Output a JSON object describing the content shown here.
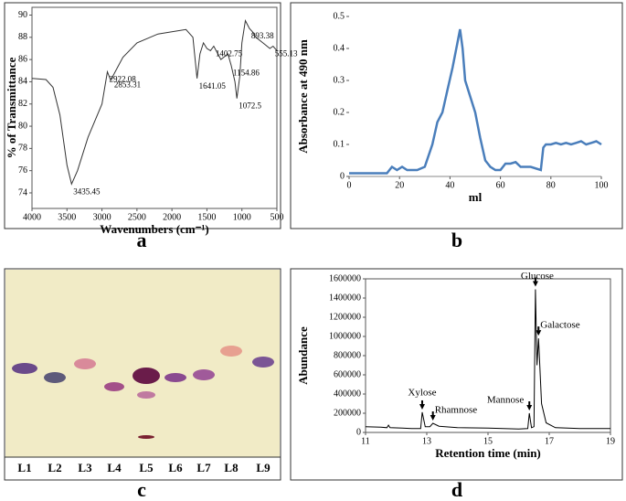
{
  "chart_data": [
    {
      "type": "line",
      "panel": "a",
      "xlabel": "Wavenumbers (cm⁻¹)",
      "ylabel": "% of Transmittance",
      "color": "#333333",
      "xlim": [
        4000,
        500
      ],
      "xticks": [
        4000,
        3500,
        3000,
        2500,
        2000,
        1500,
        1000,
        500
      ],
      "ylim": [
        72.6,
        90.7
      ],
      "yticks": [
        74,
        76,
        78,
        80,
        82,
        84,
        86,
        88,
        90
      ],
      "x": [
        4000,
        3800,
        3700,
        3600,
        3500,
        3435,
        3350,
        3200,
        3000,
        2922,
        2880,
        2853,
        2700,
        2500,
        2200,
        2000,
        1800,
        1700,
        1641,
        1600,
        1550,
        1500,
        1450,
        1402,
        1300,
        1200,
        1154,
        1100,
        1072,
        1030,
        1000,
        950,
        893,
        850,
        800,
        700,
        600,
        555,
        500
      ],
      "values": [
        84.3,
        84.2,
        83.5,
        81,
        76.5,
        74.8,
        76,
        79,
        82,
        84.9,
        84.2,
        84.4,
        86.2,
        87.5,
        88.3,
        88.5,
        88.7,
        88,
        84.3,
        86.5,
        87.5,
        87,
        86.8,
        87.2,
        86,
        86.5,
        85.5,
        84,
        82.5,
        84.5,
        87.5,
        89.5,
        88.8,
        88.5,
        88,
        87.5,
        87,
        87.2,
        86.8
      ],
      "annotations": [
        {
          "text": "3435.45",
          "x": 3435,
          "y": 74.8
        },
        {
          "text": "2922.08",
          "x": 2922,
          "y": 84.9
        },
        {
          "text": "2853.31",
          "x": 2853,
          "y": 84.4
        },
        {
          "text": "1641.05",
          "x": 1641,
          "y": 84.3
        },
        {
          "text": "1402.75",
          "x": 1402,
          "y": 87.2
        },
        {
          "text": "1154.86",
          "x": 1154,
          "y": 85.5
        },
        {
          "text": "1072.5",
          "x": 1072,
          "y": 82.5
        },
        {
          "text": "893.38",
          "x": 893,
          "y": 88.8
        },
        {
          "text": "555.13",
          "x": 555,
          "y": 87.2
        }
      ]
    },
    {
      "type": "line",
      "panel": "b",
      "xlabel": "ml",
      "ylabel": "Absorbance at 490 nm",
      "color": "#4a7ebb",
      "xlim": [
        0,
        100
      ],
      "xticks": [
        0,
        20,
        40,
        60,
        80,
        100
      ],
      "ylim": [
        0,
        0.5
      ],
      "yticks": [
        0,
        0.1,
        0.2,
        0.3,
        0.4,
        0.5
      ],
      "x": [
        0,
        5,
        10,
        15,
        17,
        19,
        21,
        23,
        27,
        30,
        33,
        35,
        37,
        39,
        41,
        43,
        44,
        45,
        46,
        48,
        50,
        52,
        54,
        56,
        58,
        60,
        62,
        64,
        66,
        68,
        72,
        76,
        77,
        78,
        80,
        82,
        84,
        86,
        88,
        90,
        92,
        94,
        96,
        98,
        100
      ],
      "values": [
        0.01,
        0.01,
        0.01,
        0.01,
        0.03,
        0.02,
        0.03,
        0.02,
        0.02,
        0.03,
        0.1,
        0.17,
        0.2,
        0.27,
        0.34,
        0.42,
        0.46,
        0.4,
        0.3,
        0.25,
        0.2,
        0.12,
        0.05,
        0.03,
        0.02,
        0.02,
        0.04,
        0.04,
        0.045,
        0.03,
        0.03,
        0.02,
        0.09,
        0.1,
        0.1,
        0.105,
        0.1,
        0.105,
        0.1,
        0.105,
        0.11,
        0.1,
        0.105,
        0.11,
        0.1
      ]
    },
    {
      "type": "line",
      "panel": "d",
      "xlabel": "Retention time (min)",
      "ylabel": "Abundance",
      "color": "#000000",
      "xlim": [
        11,
        19
      ],
      "xticks": [
        11,
        13,
        15,
        17,
        19
      ],
      "ylim": [
        0,
        1600000
      ],
      "yticks": [
        0,
        200000,
        400000,
        600000,
        800000,
        1000000,
        1200000,
        1400000,
        1600000
      ],
      "x": [
        11,
        11.5,
        11.7,
        11.75,
        11.8,
        12.2,
        12.5,
        12.8,
        12.85,
        12.95,
        13.1,
        13.2,
        13.4,
        14,
        15,
        15.5,
        16,
        16.3,
        16.35,
        16.42,
        16.5,
        16.55,
        16.6,
        16.65,
        16.75,
        16.9,
        17.2,
        18,
        19
      ],
      "values": [
        60000,
        55000,
        50000,
        75000,
        50000,
        45000,
        40000,
        40000,
        210000,
        60000,
        60000,
        95000,
        65000,
        50000,
        45000,
        40000,
        35000,
        40000,
        200000,
        50000,
        60000,
        1490000,
        700000,
        980000,
        300000,
        100000,
        50000,
        40000,
        40000
      ],
      "annotations": [
        {
          "text": "Xylose",
          "x": 12.85,
          "y": 210000
        },
        {
          "text": "Rhamnose",
          "x": 13.2,
          "y": 95000
        },
        {
          "text": "Mannose",
          "x": 16.35,
          "y": 200000
        },
        {
          "text": "Glucose",
          "x": 16.55,
          "y": 1490000
        },
        {
          "text": "Galactose",
          "x": 16.65,
          "y": 980000
        }
      ]
    }
  ],
  "tlc": {
    "panel": "c",
    "lanes": [
      "L1",
      "L2",
      "L3",
      "L4",
      "L5",
      "L6",
      "L7",
      "L8",
      "L9"
    ]
  }
}
